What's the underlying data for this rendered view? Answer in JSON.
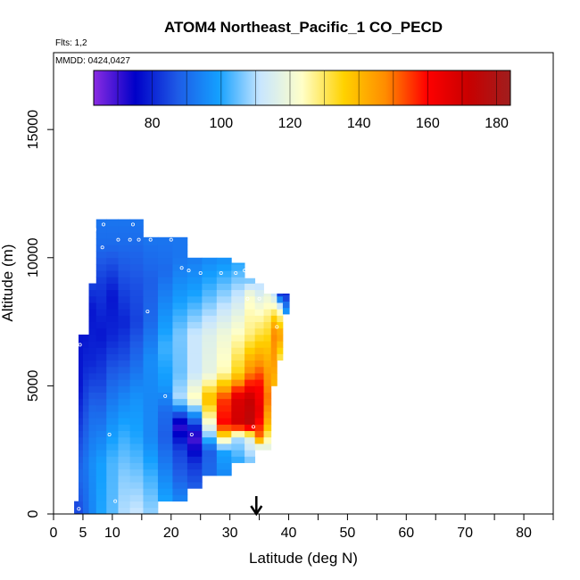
{
  "chart_data": {
    "type": "heatmap",
    "title": "ATOM4 Northeast_Pacific_1 CO_PECD",
    "flights_label": "Flts: 1,2",
    "dates_label": "MMDD: 0424,0427",
    "xlabel": "Latitude (deg N)",
    "ylabel": "Altitude (m)",
    "xlim": [
      0,
      85
    ],
    "ylim": [
      0,
      18000
    ],
    "x_ticks": [
      0,
      5,
      10,
      20,
      30,
      40,
      50,
      60,
      70,
      80
    ],
    "x_minor_ticks": [
      15,
      25,
      35,
      45,
      55,
      65,
      75,
      85
    ],
    "y_ticks": [
      0,
      5000,
      10000,
      15000
    ],
    "colorbar": {
      "min": 63,
      "max": 184,
      "ticks": [
        80,
        100,
        120,
        140,
        160,
        180
      ],
      "colors": [
        "#8a2be2",
        "#0000c8",
        "#1e5ae6",
        "#14a0ff",
        "#c8e6ff",
        "#ffffc8",
        "#ffd200",
        "#ff8c00",
        "#ff0000",
        "#c80000",
        "#a01e1e"
      ]
    },
    "marker_latitude": 34.5,
    "columns": [
      {
        "lat": 4.0,
        "alt": [
          0,
          500
        ],
        "segs": [
          [
            0,
            85
          ],
          [
            500,
            85
          ]
        ]
      },
      {
        "lat": 4.5,
        "alt": [
          0,
          7000
        ],
        "segs": [
          [
            0,
            85
          ],
          [
            1500,
            90
          ],
          [
            3000,
            85
          ],
          [
            5000,
            78
          ],
          [
            7000,
            78
          ]
        ]
      },
      {
        "lat": 5.5,
        "alt": [
          0,
          7000
        ],
        "segs": [
          [
            0,
            90
          ],
          [
            2000,
            92
          ],
          [
            4000,
            86
          ],
          [
            6000,
            80
          ],
          [
            7000,
            78
          ]
        ]
      },
      {
        "lat": 6.5,
        "alt": [
          0,
          9000
        ],
        "segs": [
          [
            0,
            95
          ],
          [
            2000,
            96
          ],
          [
            4000,
            90
          ],
          [
            6000,
            80
          ],
          [
            8000,
            78
          ],
          [
            9000,
            84
          ]
        ]
      },
      {
        "lat": 8.0,
        "alt": [
          0,
          11500
        ],
        "segs": [
          [
            0,
            100
          ],
          [
            2000,
            99
          ],
          [
            3500,
            92
          ],
          [
            5000,
            85
          ],
          [
            7000,
            78
          ],
          [
            9000,
            83
          ],
          [
            10500,
            90
          ],
          [
            11500,
            92
          ]
        ]
      },
      {
        "lat": 10.0,
        "alt": [
          0,
          11500
        ],
        "segs": [
          [
            0,
            104
          ],
          [
            2000,
            103
          ],
          [
            3500,
            97
          ],
          [
            5000,
            90
          ],
          [
            7000,
            80
          ],
          [
            8500,
            78
          ],
          [
            9500,
            84
          ],
          [
            10500,
            90
          ],
          [
            11500,
            92
          ]
        ]
      },
      {
        "lat": 12.0,
        "alt": [
          0,
          11500
        ],
        "segs": [
          [
            0,
            110
          ],
          [
            1500,
            107
          ],
          [
            3000,
            102
          ],
          [
            4500,
            95
          ],
          [
            6000,
            86
          ],
          [
            7500,
            80
          ],
          [
            9000,
            85
          ],
          [
            10500,
            90
          ],
          [
            11500,
            92
          ]
        ]
      },
      {
        "lat": 14.0,
        "alt": [
          0,
          11500
        ],
        "segs": [
          [
            0,
            112
          ],
          [
            1500,
            106
          ],
          [
            3000,
            100
          ],
          [
            4500,
            97
          ],
          [
            6000,
            90
          ],
          [
            7500,
            84
          ],
          [
            9000,
            86
          ],
          [
            10500,
            90
          ],
          [
            11500,
            92
          ]
        ]
      },
      {
        "lat": 16.5,
        "alt": [
          0,
          10800
        ],
        "segs": [
          [
            0,
            108
          ],
          [
            1500,
            102
          ],
          [
            3000,
            95
          ],
          [
            4500,
            95
          ],
          [
            6000,
            96
          ],
          [
            7500,
            90
          ],
          [
            9000,
            88
          ],
          [
            10800,
            92
          ]
        ]
      },
      {
        "lat": 19.0,
        "alt": [
          500,
          10800
        ],
        "segs": [
          [
            500,
            100
          ],
          [
            1500,
            95
          ],
          [
            3000,
            88
          ],
          [
            4000,
            90
          ],
          [
            5000,
            98
          ],
          [
            6500,
            102
          ],
          [
            8000,
            96
          ],
          [
            9500,
            90
          ],
          [
            10800,
            92
          ]
        ]
      },
      {
        "lat": 21.5,
        "alt": [
          500,
          10800
        ],
        "segs": [
          [
            500,
            95
          ],
          [
            1500,
            88
          ],
          [
            2500,
            84
          ],
          [
            3500,
            70
          ],
          [
            4500,
            110
          ],
          [
            5500,
            105
          ],
          [
            7000,
            106
          ],
          [
            8500,
            98
          ],
          [
            10000,
            92
          ],
          [
            10800,
            92
          ]
        ]
      },
      {
        "lat": 24.0,
        "alt": [
          1000,
          10000
        ],
        "segs": [
          [
            1000,
            88
          ],
          [
            2000,
            82
          ],
          [
            3000,
            68
          ],
          [
            4000,
            100
          ],
          [
            4500,
            125
          ],
          [
            5500,
            112
          ],
          [
            7000,
            112
          ],
          [
            8500,
            100
          ],
          [
            10000,
            93
          ]
        ]
      },
      {
        "lat": 26.5,
        "alt": [
          1500,
          10000
        ],
        "segs": [
          [
            1500,
            90
          ],
          [
            2500,
            88
          ],
          [
            3500,
            120
          ],
          [
            4500,
            140
          ],
          [
            5500,
            118
          ],
          [
            7000,
            116
          ],
          [
            8500,
            104
          ],
          [
            10000,
            95
          ]
        ]
      },
      {
        "lat": 29.0,
        "alt": [
          1500,
          10000
        ],
        "segs": [
          [
            1500,
            95
          ],
          [
            2500,
            100
          ],
          [
            3500,
            160
          ],
          [
            4500,
            155
          ],
          [
            5500,
            125
          ],
          [
            7000,
            120
          ],
          [
            8500,
            108
          ],
          [
            10000,
            96
          ]
        ]
      },
      {
        "lat": 31.5,
        "alt": [
          2000,
          9800
        ],
        "segs": [
          [
            2000,
            100
          ],
          [
            3000,
            110
          ],
          [
            3500,
            170
          ],
          [
            4500,
            168
          ],
          [
            5500,
            135
          ],
          [
            7000,
            124
          ],
          [
            8500,
            112
          ],
          [
            9800,
            100
          ]
        ]
      },
      {
        "lat": 33.5,
        "alt": [
          2000,
          9200
        ],
        "segs": [
          [
            2000,
            105
          ],
          [
            3000,
            118
          ],
          [
            3500,
            175
          ],
          [
            4500,
            172
          ],
          [
            5500,
            148
          ],
          [
            7000,
            128
          ],
          [
            8500,
            122
          ],
          [
            9200,
            104
          ]
        ]
      },
      {
        "lat": 35.0,
        "alt": [
          2500,
          9000
        ],
        "segs": [
          [
            2500,
            108
          ],
          [
            3000,
            150
          ],
          [
            4000,
            165
          ],
          [
            5000,
            160
          ],
          [
            6000,
            145
          ],
          [
            7000,
            132
          ],
          [
            8000,
            122
          ],
          [
            9000,
            110
          ]
        ]
      },
      {
        "lat": 36.5,
        "alt": [
          2500,
          8600
        ],
        "segs": [
          [
            2500,
            115
          ],
          [
            3500,
            140
          ],
          [
            4500,
            150
          ],
          [
            5500,
            145
          ],
          [
            6500,
            138
          ],
          [
            7500,
            130
          ],
          [
            8600,
            118
          ]
        ]
      },
      {
        "lat": 37.5,
        "alt": [
          5000,
          8600
        ],
        "segs": [
          [
            5000,
            140
          ],
          [
            6000,
            145
          ],
          [
            7000,
            148
          ],
          [
            7500,
            140
          ],
          [
            8600,
            110
          ]
        ]
      },
      {
        "lat": 38.5,
        "alt": [
          6000,
          8600
        ],
        "segs": [
          [
            6000,
            130
          ],
          [
            7000,
            145
          ],
          [
            8000,
            120
          ],
          [
            8600,
            80
          ]
        ]
      },
      {
        "lat": 39.5,
        "alt": [
          7800,
          8600
        ],
        "segs": [
          [
            7800,
            100
          ],
          [
            8600,
            80
          ]
        ]
      }
    ],
    "points": [
      [
        5.8,
        11300
      ],
      [
        7.0,
        11100
      ],
      [
        8.5,
        11300
      ],
      [
        13.5,
        11300
      ],
      [
        11.0,
        10700
      ],
      [
        13.0,
        10700
      ],
      [
        14.5,
        10700
      ],
      [
        16.5,
        10700
      ],
      [
        20.0,
        10700
      ],
      [
        8.3,
        10400
      ],
      [
        21.8,
        9600
      ],
      [
        23.0,
        9500
      ],
      [
        25.0,
        9400
      ],
      [
        28.5,
        9400
      ],
      [
        31.0,
        9400
      ],
      [
        32.5,
        9500
      ],
      [
        33.0,
        8400
      ],
      [
        35.0,
        8400
      ],
      [
        16.0,
        7900
      ],
      [
        4.5,
        6600
      ],
      [
        19.0,
        4600
      ],
      [
        9.5,
        3100
      ],
      [
        23.5,
        3100
      ],
      [
        34.0,
        3400
      ],
      [
        38.0,
        7300
      ],
      [
        10.5,
        500
      ],
      [
        24.5,
        600
      ],
      [
        4.3,
        200
      ]
    ]
  }
}
